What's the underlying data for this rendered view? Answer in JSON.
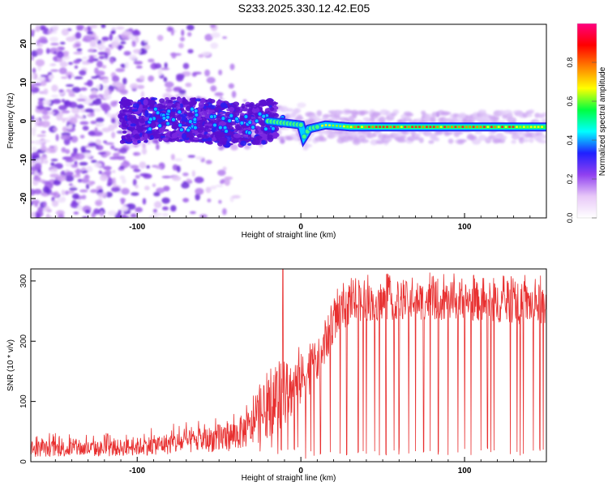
{
  "title": "S233.2025.330.12.42.E05",
  "chart_data": [
    {
      "type": "heatmap",
      "title": "",
      "xlabel": "Height of straight line (km)",
      "ylabel": "Frequency (Hz)",
      "xlim": [
        -165,
        150
      ],
      "ylim": [
        -25,
        25
      ],
      "xticks": [
        -100,
        0,
        100
      ],
      "yticks": [
        -20,
        -10,
        0,
        10,
        20
      ],
      "grid": false,
      "colorbar": {
        "label": "Normalized spectral amplitude",
        "range": [
          0,
          1
        ],
        "ticks": [
          "0.0",
          "0.2",
          "0.4",
          "0.6",
          "0.8"
        ],
        "colors": [
          "#ffffff",
          "#e8c8f8",
          "#9040f0",
          "#2020ff",
          "#00ffff",
          "#00ff40",
          "#ffff00",
          "#ff8000",
          "#ff0000",
          "#ff0080"
        ]
      },
      "ridge": [
        {
          "x": -140,
          "y": 0.0
        },
        {
          "x": -100,
          "y": 0.0
        },
        {
          "x": -80,
          "y": 0.5
        },
        {
          "x": -60,
          "y": 0.0
        },
        {
          "x": -40,
          "y": -1.0
        },
        {
          "x": -20,
          "y": 0.0
        },
        {
          "x": -10,
          "y": -0.5
        },
        {
          "x": 0,
          "y": -1.0
        },
        {
          "x": 2,
          "y": -4.0
        },
        {
          "x": 5,
          "y": -2.0
        },
        {
          "x": 15,
          "y": -1.0
        },
        {
          "x": 30,
          "y": -1.5
        },
        {
          "x": 60,
          "y": -1.5
        },
        {
          "x": 100,
          "y": -1.5
        },
        {
          "x": 150,
          "y": -1.5
        }
      ]
    },
    {
      "type": "line",
      "title": "",
      "xlabel": "Height of straight line (km)",
      "ylabel": "SNR (10 * v/v)",
      "xlim": [
        -165,
        150
      ],
      "ylim": [
        0,
        320
      ],
      "xticks": [
        -100,
        0,
        100
      ],
      "yticks": [
        0,
        100,
        200,
        300
      ],
      "grid": false,
      "color": "#e83030",
      "envelope": [
        {
          "x": -165,
          "lo": 8,
          "hi": 35
        },
        {
          "x": -120,
          "lo": 8,
          "hi": 35
        },
        {
          "x": -100,
          "lo": 10,
          "hi": 40
        },
        {
          "x": -80,
          "lo": 12,
          "hi": 48
        },
        {
          "x": -60,
          "lo": 15,
          "hi": 55
        },
        {
          "x": -40,
          "lo": 18,
          "hi": 70
        },
        {
          "x": -30,
          "lo": 25,
          "hi": 90
        },
        {
          "x": -20,
          "lo": 40,
          "hi": 140
        },
        {
          "x": -10,
          "lo": 60,
          "hi": 160
        },
        {
          "x": 0,
          "lo": 90,
          "hi": 180
        },
        {
          "x": 10,
          "lo": 130,
          "hi": 200
        },
        {
          "x": 15,
          "lo": 160,
          "hi": 230
        },
        {
          "x": 20,
          "lo": 200,
          "hi": 270
        },
        {
          "x": 30,
          "lo": 230,
          "hi": 290
        },
        {
          "x": 50,
          "lo": 235,
          "hi": 300
        },
        {
          "x": 100,
          "lo": 235,
          "hi": 300
        },
        {
          "x": 150,
          "lo": 225,
          "hi": 295
        }
      ],
      "spikes": [
        {
          "x": -11,
          "y": 320
        },
        {
          "x": 3,
          "y": 5
        },
        {
          "x": 8,
          "y": 10
        }
      ],
      "dropouts": [
        -50,
        -25,
        -18,
        -14,
        -12,
        -8,
        -4,
        -2,
        6,
        12,
        18,
        24,
        28,
        35,
        38,
        40,
        45,
        48,
        52,
        57,
        60,
        66,
        70,
        75,
        79,
        84,
        90,
        96,
        100,
        104,
        110,
        114,
        116,
        118,
        128,
        132,
        134,
        136,
        142,
        146,
        148
      ],
      "dropout_min": 10
    }
  ]
}
